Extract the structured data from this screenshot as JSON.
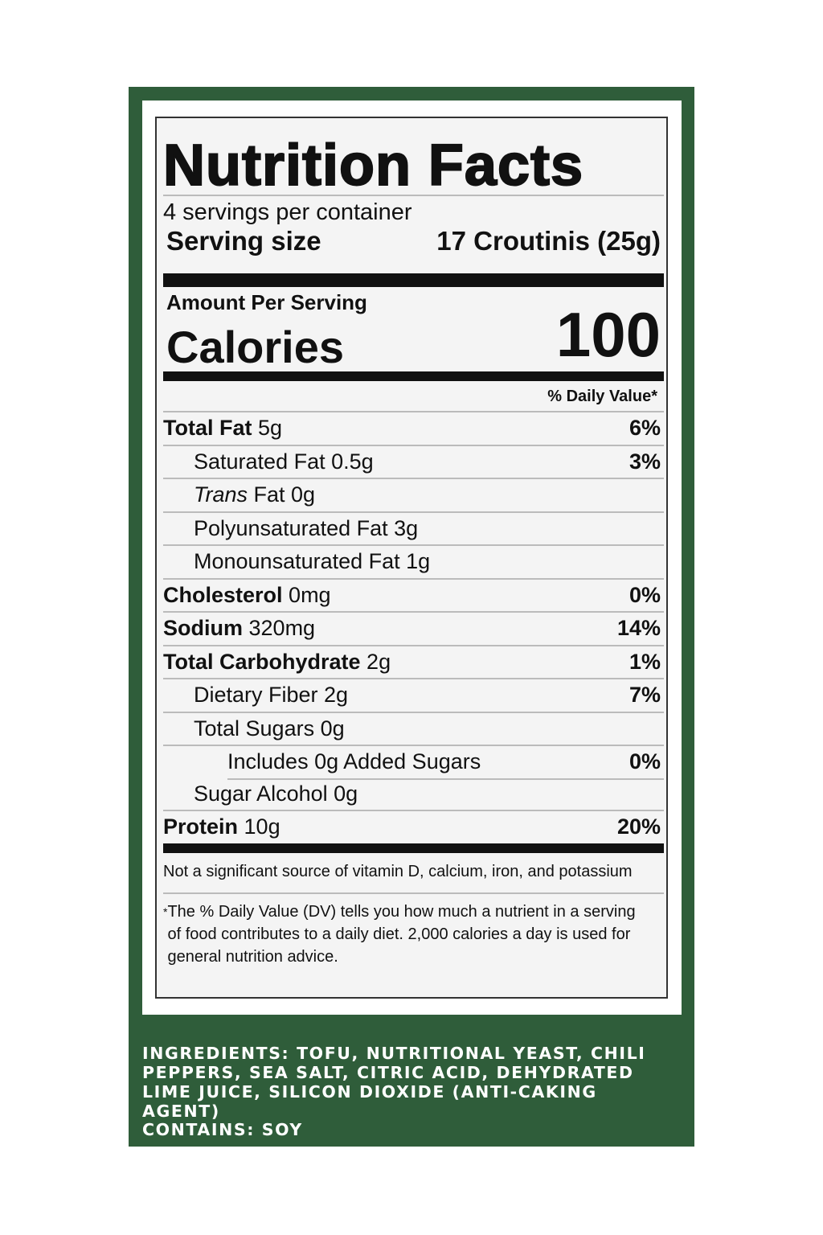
{
  "label": {
    "title": "Nutrition Facts",
    "servings": "4 servings per container",
    "serving_size_label": "Serving size",
    "serving_size_value": "17 Croutinis (25g)",
    "amount_per_serving": "Amount Per Serving",
    "calories_label": "Calories",
    "calories_value": 100,
    "dv_header": "% Daily Value*",
    "rows": [
      {
        "name": "Total Fat",
        "amount": "5g",
        "dv": "6%"
      },
      {
        "name": "Saturated Fat 0.5g",
        "dv": "3%"
      },
      {
        "name_italic": "Trans",
        "name": "Fat 0g"
      },
      {
        "name": "Polyunsaturated Fat 3g"
      },
      {
        "name": "Monounsaturated Fat 1g"
      },
      {
        "name": "Cholesterol",
        "amount": "0mg",
        "dv": "0%"
      },
      {
        "name": "Sodium",
        "amount": "320mg",
        "dv": "14%"
      },
      {
        "name": "Total Carbohydrate",
        "amount": "2g",
        "dv": "1%"
      },
      {
        "name": "Dietary Fiber 2g",
        "dv": "7%"
      },
      {
        "name": "Total Sugars 0g"
      },
      {
        "name": "Includes 0g Added Sugars",
        "dv": "0%"
      },
      {
        "name": "Sugar Alcohol 0g"
      },
      {
        "name": "Protein",
        "amount": "10g",
        "dv": "20%"
      }
    ],
    "vitamins_note": "Not a significant source of vitamin D, calcium, iron, and potassium",
    "footnote_marker": "*",
    "footnote": "The % Daily Value (DV) tells you how much a nutrient in a serving of food contributes to a daily diet. 2,000 calories a day is used for general nutrition advice."
  },
  "ingredients": {
    "text": "INGREDIENTS: TOFU, NUTRITIONAL YEAST, CHILI PEPPERS, SEA SALT, CITRIC ACID, DEHYDRATED LIME JUICE, SILICON DIOXIDE (ANTI-CAKING AGENT)",
    "contains": "CONTAINS: SOY"
  }
}
